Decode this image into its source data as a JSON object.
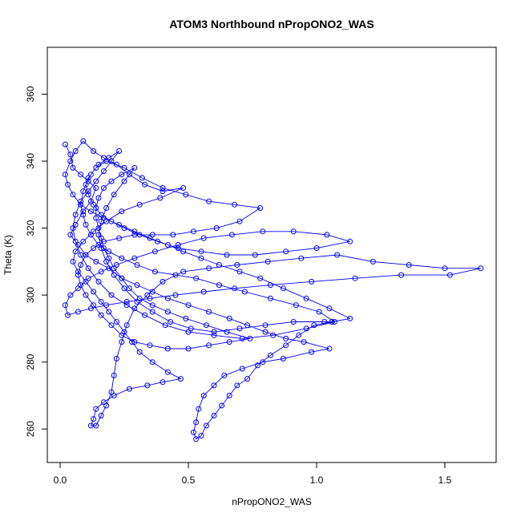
{
  "chart_data": {
    "type": "scatter",
    "title": "ATOM3 Northbound nPropONO2_WAS",
    "xlabel": "nPropONO2_WAS",
    "ylabel": "Theta (K)",
    "xlim": [
      -0.05,
      1.7
    ],
    "ylim": [
      250,
      374
    ],
    "x_ticks": [
      0.0,
      0.5,
      1.0,
      1.5
    ],
    "x_tick_labels": [
      "0.0",
      "0.5",
      "1.0",
      "1.5"
    ],
    "y_ticks": [
      260,
      280,
      300,
      320,
      340,
      360
    ],
    "y_tick_labels": [
      "260",
      "280",
      "300",
      "320",
      "340",
      "360"
    ],
    "grid": false,
    "series_style": {
      "color": "#0000ff",
      "marker": "open-circle",
      "connected": true
    },
    "points": [
      [
        0.02,
        345
      ],
      [
        0.04,
        342
      ],
      [
        0.05,
        338
      ],
      [
        0.08,
        336
      ],
      [
        0.11,
        334
      ],
      [
        0.14,
        332
      ],
      [
        0.12,
        328
      ],
      [
        0.09,
        325
      ],
      [
        0.06,
        321
      ],
      [
        0.04,
        318
      ],
      [
        0.07,
        315
      ],
      [
        0.1,
        312
      ],
      [
        0.14,
        310
      ],
      [
        0.19,
        308
      ],
      [
        0.24,
        305
      ],
      [
        0.3,
        303
      ],
      [
        0.36,
        301
      ],
      [
        0.42,
        299
      ],
      [
        0.5,
        297
      ],
      [
        0.58,
        295
      ],
      [
        0.66,
        293
      ],
      [
        0.73,
        291
      ],
      [
        0.8,
        289
      ],
      [
        0.88,
        287
      ],
      [
        0.95,
        286
      ],
      [
        1.05,
        284
      ],
      [
        0.98,
        283
      ],
      [
        0.87,
        281
      ],
      [
        0.79,
        280
      ],
      [
        0.71,
        278
      ],
      [
        0.64,
        276
      ],
      [
        0.6,
        273
      ],
      [
        0.56,
        270
      ],
      [
        0.54,
        266
      ],
      [
        0.53,
        262
      ],
      [
        0.52,
        259
      ],
      [
        0.53,
        257
      ],
      [
        0.55,
        258
      ],
      [
        0.57,
        261
      ],
      [
        0.6,
        264
      ],
      [
        0.63,
        267
      ],
      [
        0.66,
        270
      ],
      [
        0.69,
        273
      ],
      [
        0.73,
        275
      ],
      [
        0.77,
        279
      ],
      [
        0.82,
        282
      ],
      [
        0.88,
        285
      ],
      [
        0.93,
        288
      ],
      [
        0.99,
        291
      ],
      [
        1.06,
        292
      ],
      [
        1.13,
        293
      ],
      [
        1.05,
        296
      ],
      [
        0.96,
        299
      ],
      [
        0.87,
        302
      ],
      [
        0.78,
        305
      ],
      [
        0.7,
        307
      ],
      [
        0.62,
        309
      ],
      [
        0.55,
        311
      ],
      [
        0.48,
        313
      ],
      [
        0.42,
        315
      ],
      [
        0.35,
        317
      ],
      [
        0.29,
        319
      ],
      [
        0.23,
        321
      ],
      [
        0.17,
        323
      ],
      [
        0.12,
        325
      ],
      [
        0.08,
        327
      ],
      [
        0.05,
        330
      ],
      [
        0.03,
        333
      ],
      [
        0.02,
        336
      ],
      [
        0.04,
        340
      ],
      [
        0.06,
        343
      ],
      [
        0.09,
        346
      ],
      [
        0.13,
        343
      ],
      [
        0.17,
        341
      ],
      [
        0.22,
        339
      ],
      [
        0.27,
        336
      ],
      [
        0.33,
        333
      ],
      [
        0.4,
        331
      ],
      [
        0.48,
        332
      ],
      [
        0.39,
        329
      ],
      [
        0.31,
        327
      ],
      [
        0.24,
        325
      ],
      [
        0.18,
        322
      ],
      [
        0.13,
        319
      ],
      [
        0.09,
        316
      ],
      [
        0.06,
        313
      ],
      [
        0.05,
        310
      ],
      [
        0.07,
        307
      ],
      [
        0.1,
        304
      ],
      [
        0.13,
        301
      ],
      [
        0.16,
        298
      ],
      [
        0.19,
        295
      ],
      [
        0.22,
        292
      ],
      [
        0.25,
        289
      ],
      [
        0.28,
        286
      ],
      [
        0.31,
        283
      ],
      [
        0.36,
        280
      ],
      [
        0.42,
        277
      ],
      [
        0.47,
        275
      ],
      [
        0.4,
        274
      ],
      [
        0.34,
        273
      ],
      [
        0.27,
        272
      ],
      [
        0.21,
        270
      ],
      [
        0.17,
        268
      ],
      [
        0.14,
        266
      ],
      [
        0.13,
        263
      ],
      [
        0.12,
        261
      ],
      [
        0.14,
        261
      ],
      [
        0.16,
        264
      ],
      [
        0.18,
        267
      ],
      [
        0.2,
        271
      ],
      [
        0.21,
        276
      ],
      [
        0.22,
        281
      ],
      [
        0.24,
        286
      ],
      [
        0.26,
        291
      ],
      [
        0.29,
        296
      ],
      [
        0.34,
        300
      ],
      [
        0.4,
        304
      ],
      [
        0.48,
        307
      ],
      [
        0.58,
        308
      ],
      [
        0.69,
        309
      ],
      [
        0.81,
        310
      ],
      [
        0.94,
        311
      ],
      [
        1.08,
        312
      ],
      [
        1.22,
        310
      ],
      [
        1.36,
        309
      ],
      [
        1.5,
        308
      ],
      [
        1.64,
        308
      ],
      [
        1.52,
        306
      ],
      [
        1.33,
        306
      ],
      [
        1.15,
        305
      ],
      [
        0.98,
        304
      ],
      [
        0.82,
        303
      ],
      [
        0.68,
        302
      ],
      [
        0.56,
        301
      ],
      [
        0.45,
        300
      ],
      [
        0.35,
        299
      ],
      [
        0.26,
        298
      ],
      [
        0.18,
        297
      ],
      [
        0.12,
        296
      ],
      [
        0.07,
        295
      ],
      [
        0.03,
        294
      ],
      [
        0.02,
        297
      ],
      [
        0.04,
        300
      ],
      [
        0.07,
        302
      ],
      [
        0.11,
        305
      ],
      [
        0.16,
        307
      ],
      [
        0.22,
        309
      ],
      [
        0.29,
        311
      ],
      [
        0.37,
        313
      ],
      [
        0.46,
        315
      ],
      [
        0.56,
        317
      ],
      [
        0.67,
        318
      ],
      [
        0.79,
        319
      ],
      [
        0.91,
        319
      ],
      [
        1.04,
        318
      ],
      [
        1.13,
        316
      ],
      [
        1.0,
        314
      ],
      [
        0.88,
        313
      ],
      [
        0.76,
        312
      ],
      [
        0.65,
        312
      ],
      [
        0.55,
        313
      ],
      [
        0.46,
        314
      ],
      [
        0.38,
        316
      ],
      [
        0.31,
        318
      ],
      [
        0.25,
        320
      ],
      [
        0.2,
        322
      ],
      [
        0.16,
        324
      ],
      [
        0.13,
        327
      ],
      [
        0.11,
        330
      ],
      [
        0.1,
        333
      ],
      [
        0.12,
        336
      ],
      [
        0.15,
        339
      ],
      [
        0.19,
        341
      ],
      [
        0.23,
        343
      ],
      [
        0.2,
        340
      ],
      [
        0.17,
        337
      ],
      [
        0.14,
        334
      ],
      [
        0.11,
        331
      ],
      [
        0.08,
        328
      ],
      [
        0.06,
        324
      ],
      [
        0.05,
        320
      ],
      [
        0.06,
        316
      ],
      [
        0.08,
        312
      ],
      [
        0.11,
        308
      ],
      [
        0.15,
        304
      ],
      [
        0.2,
        300
      ],
      [
        0.26,
        297
      ],
      [
        0.33,
        294
      ],
      [
        0.41,
        291
      ],
      [
        0.5,
        289
      ],
      [
        0.6,
        288
      ],
      [
        0.71,
        287
      ],
      [
        0.83,
        288
      ],
      [
        0.96,
        290
      ],
      [
        1.07,
        292
      ],
      [
        1.01,
        295
      ],
      [
        0.92,
        297
      ],
      [
        0.82,
        299
      ],
      [
        0.72,
        301
      ],
      [
        0.62,
        303
      ],
      [
        0.53,
        305
      ],
      [
        0.45,
        306
      ],
      [
        0.37,
        307
      ],
      [
        0.3,
        309
      ],
      [
        0.24,
        311
      ],
      [
        0.19,
        313
      ],
      [
        0.15,
        315
      ],
      [
        0.12,
        318
      ],
      [
        0.1,
        321
      ],
      [
        0.09,
        324
      ],
      [
        0.08,
        327
      ],
      [
        0.09,
        331
      ],
      [
        0.11,
        335
      ],
      [
        0.14,
        338
      ],
      [
        0.18,
        340
      ],
      [
        0.25,
        338
      ],
      [
        0.32,
        335
      ],
      [
        0.4,
        332
      ],
      [
        0.49,
        330
      ],
      [
        0.58,
        328
      ],
      [
        0.68,
        327
      ],
      [
        0.78,
        326
      ],
      [
        0.7,
        322
      ],
      [
        0.61,
        320
      ],
      [
        0.52,
        319
      ],
      [
        0.44,
        318
      ],
      [
        0.36,
        318
      ],
      [
        0.29,
        318
      ],
      [
        0.23,
        317
      ],
      [
        0.17,
        316
      ],
      [
        0.13,
        314
      ],
      [
        0.1,
        312
      ],
      [
        0.08,
        309
      ],
      [
        0.07,
        306
      ],
      [
        0.08,
        303
      ],
      [
        0.1,
        300
      ],
      [
        0.13,
        297
      ],
      [
        0.16,
        294
      ],
      [
        0.2,
        291
      ],
      [
        0.24,
        288
      ],
      [
        0.29,
        286
      ],
      [
        0.35,
        285
      ],
      [
        0.42,
        284
      ],
      [
        0.5,
        284
      ],
      [
        0.58,
        285
      ],
      [
        0.66,
        286
      ],
      [
        0.74,
        287
      ],
      [
        0.65,
        289
      ],
      [
        0.57,
        291
      ],
      [
        0.49,
        293
      ],
      [
        0.42,
        295
      ],
      [
        0.36,
        297
      ],
      [
        0.31,
        299
      ],
      [
        0.27,
        302
      ],
      [
        0.24,
        305
      ],
      [
        0.21,
        308
      ],
      [
        0.19,
        311
      ],
      [
        0.17,
        314
      ],
      [
        0.16,
        317
      ],
      [
        0.15,
        320
      ],
      [
        0.14,
        323
      ],
      [
        0.14,
        326
      ],
      [
        0.15,
        329
      ],
      [
        0.17,
        332
      ],
      [
        0.2,
        334
      ],
      [
        0.24,
        336
      ],
      [
        0.29,
        338
      ],
      [
        0.25,
        334
      ],
      [
        0.21,
        330
      ],
      [
        0.18,
        326
      ],
      [
        0.16,
        322
      ],
      [
        0.15,
        318
      ],
      [
        0.16,
        314
      ],
      [
        0.18,
        310
      ],
      [
        0.21,
        306
      ],
      [
        0.25,
        302
      ],
      [
        0.3,
        298
      ],
      [
        0.36,
        295
      ],
      [
        0.43,
        292
      ],
      [
        0.51,
        290
      ],
      [
        0.6,
        289
      ],
      [
        0.7,
        290
      ],
      [
        0.8,
        291
      ],
      [
        0.91,
        292
      ],
      [
        1.03,
        292
      ],
      [
        1.06,
        292
      ]
    ]
  }
}
